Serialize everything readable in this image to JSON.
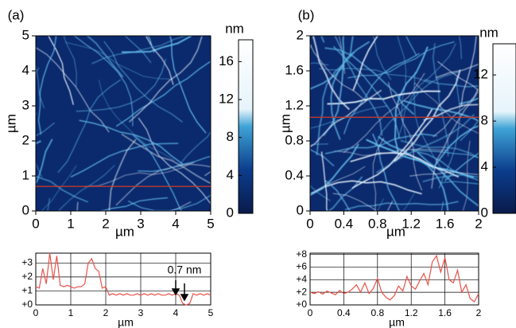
{
  "chart_data": [
    {
      "type": "image",
      "panel_label": "(a)",
      "xlabel": "µm",
      "ylabel": "µm",
      "xlim": [
        0,
        5
      ],
      "ylim": [
        0,
        5
      ],
      "xticks": [
        0,
        1,
        2,
        3,
        4,
        5
      ],
      "yticks": [
        0,
        1,
        2,
        3,
        4,
        5
      ],
      "profile_y": 0.7,
      "profile_color": "#c0392b",
      "colorbar_label": "nm",
      "colorbar_lim": [
        0,
        18.3
      ],
      "colorbar_ticks": [
        0,
        4,
        8,
        12,
        16
      ]
    },
    {
      "type": "image",
      "panel_label": "(b)",
      "xlabel": "µm",
      "ylabel": "µm",
      "xlim": [
        0,
        2
      ],
      "ylim": [
        0,
        2
      ],
      "xticks": [
        0,
        0.4,
        0.8,
        1.2,
        1.6,
        2
      ],
      "yticks": [
        0,
        0.4,
        0.8,
        1.2,
        1.6,
        2
      ],
      "profile_y": 1.07,
      "profile_color": "#c0392b",
      "colorbar_label": "nm",
      "colorbar_lim": [
        0,
        14.7
      ],
      "colorbar_ticks": [
        0,
        4,
        8,
        12
      ]
    },
    {
      "type": "line",
      "xlabel": "µm",
      "color": "#e8524a",
      "grid": true,
      "annotation": "0.7 nm",
      "xlim": [
        0,
        5
      ],
      "xticks": [
        0,
        1,
        2,
        3,
        4,
        5
      ],
      "ylim": [
        0,
        3.7
      ],
      "yticks": [
        {
          "value": 0,
          "label": "+0"
        },
        {
          "value": 1,
          "label": "+1"
        },
        {
          "value": 2,
          "label": "+2"
        },
        {
          "value": 3,
          "label": "+3"
        }
      ],
      "x": [
        0,
        0.1,
        0.2,
        0.3,
        0.4,
        0.5,
        0.6,
        0.7,
        0.8,
        0.9,
        1,
        1.1,
        1.2,
        1.3,
        1.4,
        1.5,
        1.6,
        1.7,
        1.8,
        1.9,
        2,
        2.1,
        2.2,
        2.3,
        2.4,
        2.5,
        2.6,
        2.7,
        2.8,
        2.9,
        3,
        3.1,
        3.2,
        3.3,
        3.4,
        3.5,
        3.6,
        3.7,
        3.8,
        3.9,
        4,
        4.1,
        4.2,
        4.3,
        4.4,
        4.5,
        4.6,
        4.7,
        4.8,
        4.9,
        5
      ],
      "values": [
        1.3,
        1.2,
        2.6,
        1.5,
        3.7,
        1.8,
        3.5,
        1.4,
        1.3,
        1.4,
        1.3,
        1.2,
        1.3,
        1.3,
        1.5,
        3.0,
        3.3,
        2.6,
        2.4,
        1.2,
        1.3,
        0.7,
        0.8,
        0.7,
        0.8,
        0.7,
        0.8,
        0.7,
        0.7,
        0.8,
        0.7,
        0.8,
        0.7,
        0.8,
        0.7,
        0.8,
        0.7,
        0.7,
        0.8,
        0.7,
        0.8,
        0.7,
        0.1,
        0.0,
        0.1,
        0.8,
        0.7,
        0.8,
        0.7,
        0.8,
        0.7
      ]
    },
    {
      "type": "line",
      "xlabel": "µm",
      "color": "#e8524a",
      "grid": true,
      "xlim": [
        0,
        2
      ],
      "xticks": [
        0,
        0.4,
        0.8,
        1.2,
        1.6,
        2
      ],
      "ylim": [
        0,
        8.2
      ],
      "yticks": [
        {
          "value": 0,
          "label": "+0"
        },
        {
          "value": 2,
          "label": "+2"
        },
        {
          "value": 4,
          "label": "+4"
        },
        {
          "value": 6,
          "label": "+6"
        },
        {
          "value": 8,
          "label": "+8"
        }
      ],
      "x": [
        0,
        0.05,
        0.1,
        0.15,
        0.2,
        0.25,
        0.3,
        0.35,
        0.4,
        0.45,
        0.5,
        0.55,
        0.6,
        0.65,
        0.7,
        0.75,
        0.8,
        0.85,
        0.9,
        0.95,
        1,
        1.05,
        1.1,
        1.15,
        1.2,
        1.25,
        1.3,
        1.35,
        1.4,
        1.45,
        1.5,
        1.55,
        1.6,
        1.65,
        1.7,
        1.75,
        1.8,
        1.85,
        1.9,
        1.95,
        2
      ],
      "values": [
        2.0,
        1.8,
        2.1,
        1.7,
        2.2,
        1.9,
        1.6,
        2.3,
        1.8,
        2.0,
        2.5,
        3.2,
        2.0,
        3.5,
        1.8,
        2.6,
        4.2,
        2.0,
        1.2,
        0.8,
        1.5,
        3.0,
        2.2,
        4.5,
        3.0,
        2.5,
        3.8,
        5.0,
        3.2,
        6.8,
        7.8,
        5.2,
        7.5,
        4.0,
        3.5,
        5.5,
        2.0,
        3.2,
        1.0,
        0.5,
        1.8
      ]
    }
  ]
}
